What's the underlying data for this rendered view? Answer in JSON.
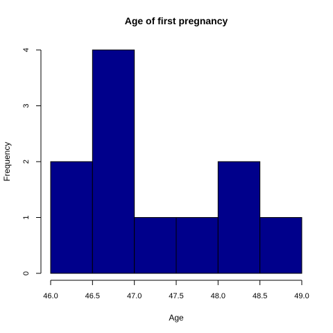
{
  "chart_data": {
    "type": "bar",
    "title": "Age of first pregnancy",
    "xlabel": "Age",
    "ylabel": "Frequency",
    "bins": [
      {
        "x0": 46.0,
        "x1": 46.5,
        "count": 2
      },
      {
        "x0": 46.5,
        "x1": 47.0,
        "count": 4
      },
      {
        "x0": 47.0,
        "x1": 47.5,
        "count": 1
      },
      {
        "x0": 47.5,
        "x1": 48.0,
        "count": 1
      },
      {
        "x0": 48.0,
        "x1": 48.5,
        "count": 2
      },
      {
        "x0": 48.5,
        "x1": 49.0,
        "count": 1
      }
    ],
    "xlim": [
      46.0,
      49.0
    ],
    "ylim": [
      0,
      4
    ],
    "x_ticks": [
      "46.0",
      "46.5",
      "47.0",
      "47.5",
      "48.0",
      "48.5",
      "49.0"
    ],
    "y_ticks": [
      "0",
      "1",
      "2",
      "3",
      "4"
    ],
    "bar_color": "#00008b",
    "grid": false,
    "legend": "none"
  }
}
